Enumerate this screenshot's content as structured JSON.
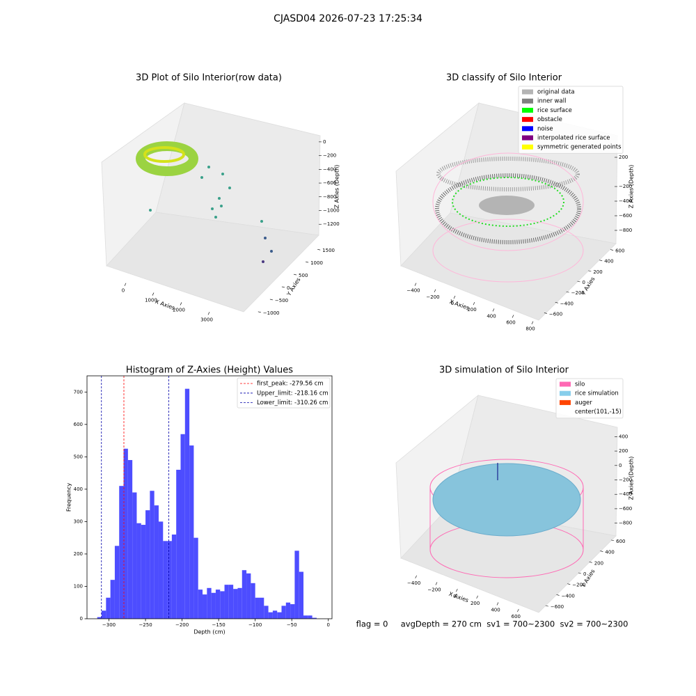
{
  "title": "CJASD04 2026-07-23 17:25:34",
  "chart_data": [
    {
      "type": "scatter3d",
      "title": "3D Plot of Silo Interior(row data)",
      "xlabel": "X Axies",
      "ylabel": "Y Axies",
      "zlabel": "Z Axies (Depth)",
      "xlim": [
        -700,
        3700
      ],
      "ylim": [
        -1200,
        1700
      ],
      "zlim": [
        -1350,
        100
      ],
      "xticks": [
        0,
        1000,
        2000,
        3000
      ],
      "yticks": [
        {
          "value": -1000,
          "label": "−1000"
        },
        {
          "value": -500,
          "label": "−500"
        },
        0,
        500,
        1000,
        1500
      ],
      "zticks": [
        0,
        {
          "value": -200,
          "label": "−200"
        },
        {
          "value": -400,
          "label": "−400"
        },
        {
          "value": -600,
          "label": "−600"
        },
        {
          "value": -800,
          "label": "−800"
        },
        {
          "value": -1000,
          "label": "−1000"
        },
        {
          "value": -1200,
          "label": "−1200"
        }
      ]
    },
    {
      "type": "scatter3d",
      "title": "3D classify of Silo Interior",
      "xlabel": "X Axies",
      "ylabel": "Y Axies",
      "zlabel": "Z Axies (Depth)",
      "xlim": [
        -500,
        850
      ],
      "ylim": [
        -700,
        700
      ],
      "zlim": [
        -900,
        300
      ],
      "xticks": [
        {
          "value": -400,
          "label": "−400"
        },
        {
          "value": -200,
          "label": "−200"
        },
        0,
        200,
        400,
        600,
        800
      ],
      "yticks": [
        {
          "value": -600,
          "label": "−600"
        },
        {
          "value": -400,
          "label": "−400"
        },
        {
          "value": -200,
          "label": "−200"
        },
        0,
        200,
        400,
        600
      ],
      "zticks": [
        200,
        {
          "value": -200,
          "label": "−200"
        },
        {
          "value": -400,
          "label": "−400"
        },
        {
          "value": -600,
          "label": "−600"
        },
        {
          "value": -800,
          "label": "−800"
        }
      ],
      "legend_entries": [
        {
          "name": "original data",
          "color": "#b4b4b4"
        },
        {
          "name": "inner wall",
          "color": "#808080"
        },
        {
          "name": "rice surface",
          "color": "#00ff00"
        },
        {
          "name": "obstacle",
          "color": "#ff0000"
        },
        {
          "name": "noise",
          "color": "#0000ff"
        },
        {
          "name": "interpolated rice surface",
          "color": "#800080"
        },
        {
          "name": "symmetric generated points",
          "color": "#ffff00"
        }
      ]
    },
    {
      "type": "histogram",
      "title": "Histogram of Z-Axies (Height) Values",
      "xlabel": "Depth (cm)",
      "ylabel": "Frequency",
      "color": "#4d4dff",
      "bins": [
        -316,
        -310,
        -304,
        -298,
        -292,
        -286,
        -280,
        -274,
        -268,
        -262,
        -256,
        -250,
        -244,
        -238,
        -232,
        -226,
        -220,
        -214,
        -208,
        -202,
        -196,
        -190,
        -184,
        -178,
        -172,
        -166,
        -160,
        -154,
        -148,
        -142,
        -136,
        -130,
        -124,
        -118,
        -112,
        -106,
        -100,
        -94,
        -88,
        -82,
        -76,
        -70,
        -64,
        -58,
        -52,
        -46,
        -40,
        -34,
        -28,
        -22,
        -16
      ],
      "values": [
        5,
        25,
        65,
        120,
        225,
        410,
        525,
        490,
        390,
        295,
        290,
        335,
        395,
        350,
        300,
        240,
        240,
        260,
        460,
        570,
        710,
        535,
        250,
        90,
        75,
        95,
        80,
        90,
        85,
        105,
        105,
        92,
        95,
        150,
        140,
        110,
        65,
        65,
        40,
        20,
        25,
        20,
        40,
        50,
        45,
        210,
        145,
        10,
        10,
        3
      ],
      "xlim": [
        -330,
        5
      ],
      "ylim": [
        0,
        750
      ],
      "xticks": [
        {
          "value": -300,
          "label": "−300"
        },
        {
          "value": -250,
          "label": "−250"
        },
        {
          "value": -200,
          "label": "−200"
        },
        {
          "value": -150,
          "label": "−150"
        },
        {
          "value": -100,
          "label": "−100"
        },
        {
          "value": -50,
          "label": "−50"
        },
        0
      ],
      "yticks": [
        0,
        100,
        200,
        300,
        400,
        500,
        600,
        700
      ],
      "vlines": [
        {
          "label": "first_peak: -279.56 cm",
          "value": -279.56,
          "color": "#ff0000"
        },
        {
          "label": "Upper_limit: -218.16 cm",
          "value": -218.16,
          "color": "#0000aa"
        },
        {
          "label": "Lower_limit: -310.26 cm",
          "value": -310.26,
          "color": "#0000aa"
        }
      ]
    },
    {
      "type": "scatter3d",
      "title": "3D simulation of Silo Interior",
      "xlabel": "X Axies",
      "ylabel": "Y Axies",
      "zlabel": "Z Axies (Depth)",
      "xlim": [
        -500,
        700
      ],
      "ylim": [
        -700,
        700
      ],
      "zlim": [
        -900,
        500
      ],
      "xticks": [
        {
          "value": -400,
          "label": "−400"
        },
        {
          "value": -200,
          "label": "−200"
        },
        0,
        200,
        400,
        600
      ],
      "yticks": [
        {
          "value": -600,
          "label": "−600"
        },
        {
          "value": -400,
          "label": "−400"
        },
        {
          "value": -200,
          "label": "−200"
        },
        0,
        200,
        400,
        600
      ],
      "zticks": [
        400,
        200,
        0,
        {
          "value": -200,
          "label": "−200"
        },
        {
          "value": -400,
          "label": "−400"
        },
        {
          "value": -600,
          "label": "−600"
        },
        {
          "value": -800,
          "label": "−800"
        }
      ],
      "legend_entries": [
        {
          "name": "silo",
          "color": "#ff69b4"
        },
        {
          "name": "rice simulation",
          "color": "#87ceeb"
        },
        {
          "name": "auger",
          "color": "#ff4500"
        },
        {
          "name": "center(101,-15)"
        }
      ],
      "annotation": "flag = 0     avgDepth = 270 cm  sv1 = 700~2300  sv2 = 700~2300"
    }
  ]
}
